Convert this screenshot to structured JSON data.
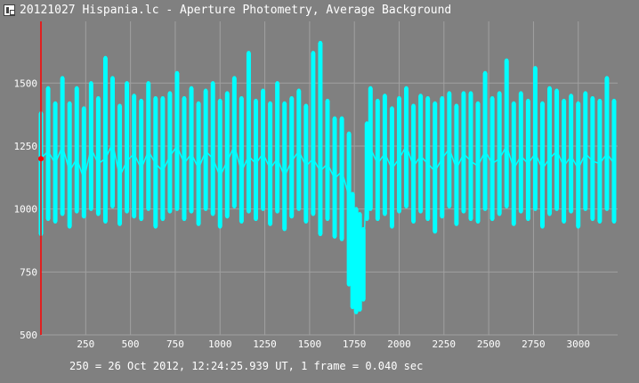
{
  "window": {
    "title": "20121027 Hispania.lc - Aperture Photometry, Average Background",
    "icon": "app-window-icon"
  },
  "footer": {
    "status": "250 = 26 Oct 2012, 12:24:25.939 UT, 1 frame = 0.040 sec"
  },
  "colors": {
    "background": "#808080",
    "grid": "#a0a0a0",
    "series": "#00ffff",
    "cursor": "#ff0000",
    "text": "#ffffff"
  },
  "chart_data": {
    "type": "line",
    "title": "20121027 Hispania.lc - Aperture Photometry, Average Background",
    "xlabel": "",
    "ylabel": "",
    "xlim": [
      0,
      3220
    ],
    "ylim": [
      500,
      1745
    ],
    "x_ticks": [
      250,
      500,
      750,
      1000,
      1250,
      1500,
      1750,
      2000,
      2250,
      2500,
      2750,
      3000
    ],
    "y_ticks": [
      500,
      750,
      1000,
      1250,
      1500
    ],
    "grid": true,
    "cursor": {
      "x": 0,
      "y": 1200
    },
    "series": [
      {
        "markers": true,
        "x": [
          0,
          40,
          80,
          120,
          160,
          200,
          240,
          280,
          320,
          360,
          400,
          440,
          480,
          520,
          560,
          600,
          640,
          680,
          720,
          760,
          800,
          840,
          880,
          920,
          960,
          1000,
          1040,
          1080,
          1120,
          1160,
          1200,
          1240,
          1280,
          1320,
          1360,
          1400,
          1440,
          1480,
          1520,
          1560,
          1600,
          1640,
          1680,
          1720,
          1740,
          1760,
          1780,
          1800,
          1820,
          1840,
          1880,
          1920,
          1960,
          2000,
          2040,
          2080,
          2120,
          2160,
          2200,
          2240,
          2280,
          2320,
          2360,
          2400,
          2440,
          2480,
          2520,
          2560,
          2600,
          2640,
          2680,
          2720,
          2760,
          2800,
          2840,
          2880,
          2920,
          2960,
          3000,
          3040,
          3080,
          3120,
          3160,
          3200
        ],
        "y": [
          1200,
          1230,
          1180,
          1250,
          1150,
          1200,
          1120,
          1240,
          1180,
          1200,
          1260,
          1130,
          1190,
          1220,
          1160,
          1230,
          1180,
          1150,
          1210,
          1250,
          1180,
          1220,
          1160,
          1230,
          1200,
          1130,
          1190,
          1250,
          1150,
          1210,
          1180,
          1220,
          1160,
          1200,
          1130,
          1190,
          1230,
          1170,
          1200,
          1150,
          1180,
          1120,
          1150,
          1050,
          900,
          820,
          780,
          760,
          1200,
          1240,
          1180,
          1220,
          1160,
          1200,
          1250,
          1170,
          1210,
          1180,
          1150,
          1200,
          1240,
          1160,
          1220,
          1190,
          1170,
          1230,
          1180,
          1200,
          1250,
          1160,
          1210,
          1180,
          1220,
          1160,
          1200,
          1230,
          1170,
          1210,
          1160,
          1220,
          1190,
          1180,
          1220,
          1180
        ],
        "min": [
          900,
          960,
          950,
          980,
          930,
          990,
          970,
          1000,
          980,
          950,
          1010,
          940,
          990,
          970,
          960,
          1000,
          930,
          960,
          990,
          1000,
          960,
          990,
          940,
          1000,
          980,
          930,
          970,
          1010,
          950,
          990,
          960,
          1000,
          940,
          990,
          920,
          970,
          1000,
          950,
          980,
          900,
          960,
          890,
          880,
          700,
          610,
          590,
          600,
          640,
          960,
          1000,
          960,
          980,
          930,
          990,
          1010,
          950,
          990,
          960,
          910,
          970,
          1010,
          940,
          990,
          960,
          950,
          1000,
          960,
          980,
          1010,
          940,
          990,
          960,
          1000,
          930,
          980,
          1000,
          950,
          990,
          930,
          1000,
          960,
          950,
          1000,
          950
        ],
        "max": [
          1380,
          1480,
          1420,
          1520,
          1420,
          1480,
          1400,
          1500,
          1440,
          1600,
          1520,
          1410,
          1500,
          1450,
          1430,
          1500,
          1440,
          1440,
          1460,
          1540,
          1440,
          1480,
          1420,
          1470,
          1500,
          1430,
          1460,
          1520,
          1440,
          1620,
          1430,
          1470,
          1420,
          1500,
          1420,
          1440,
          1470,
          1410,
          1620,
          1660,
          1430,
          1360,
          1360,
          1300,
          1060,
          1000,
          980,
          920,
          1340,
          1480,
          1430,
          1450,
          1400,
          1440,
          1480,
          1410,
          1450,
          1440,
          1420,
          1440,
          1460,
          1410,
          1460,
          1460,
          1420,
          1540,
          1440,
          1460,
          1590,
          1420,
          1460,
          1430,
          1560,
          1420,
          1480,
          1470,
          1430,
          1450,
          1420,
          1460,
          1440,
          1430,
          1520,
          1430
        ]
      }
    ]
  }
}
